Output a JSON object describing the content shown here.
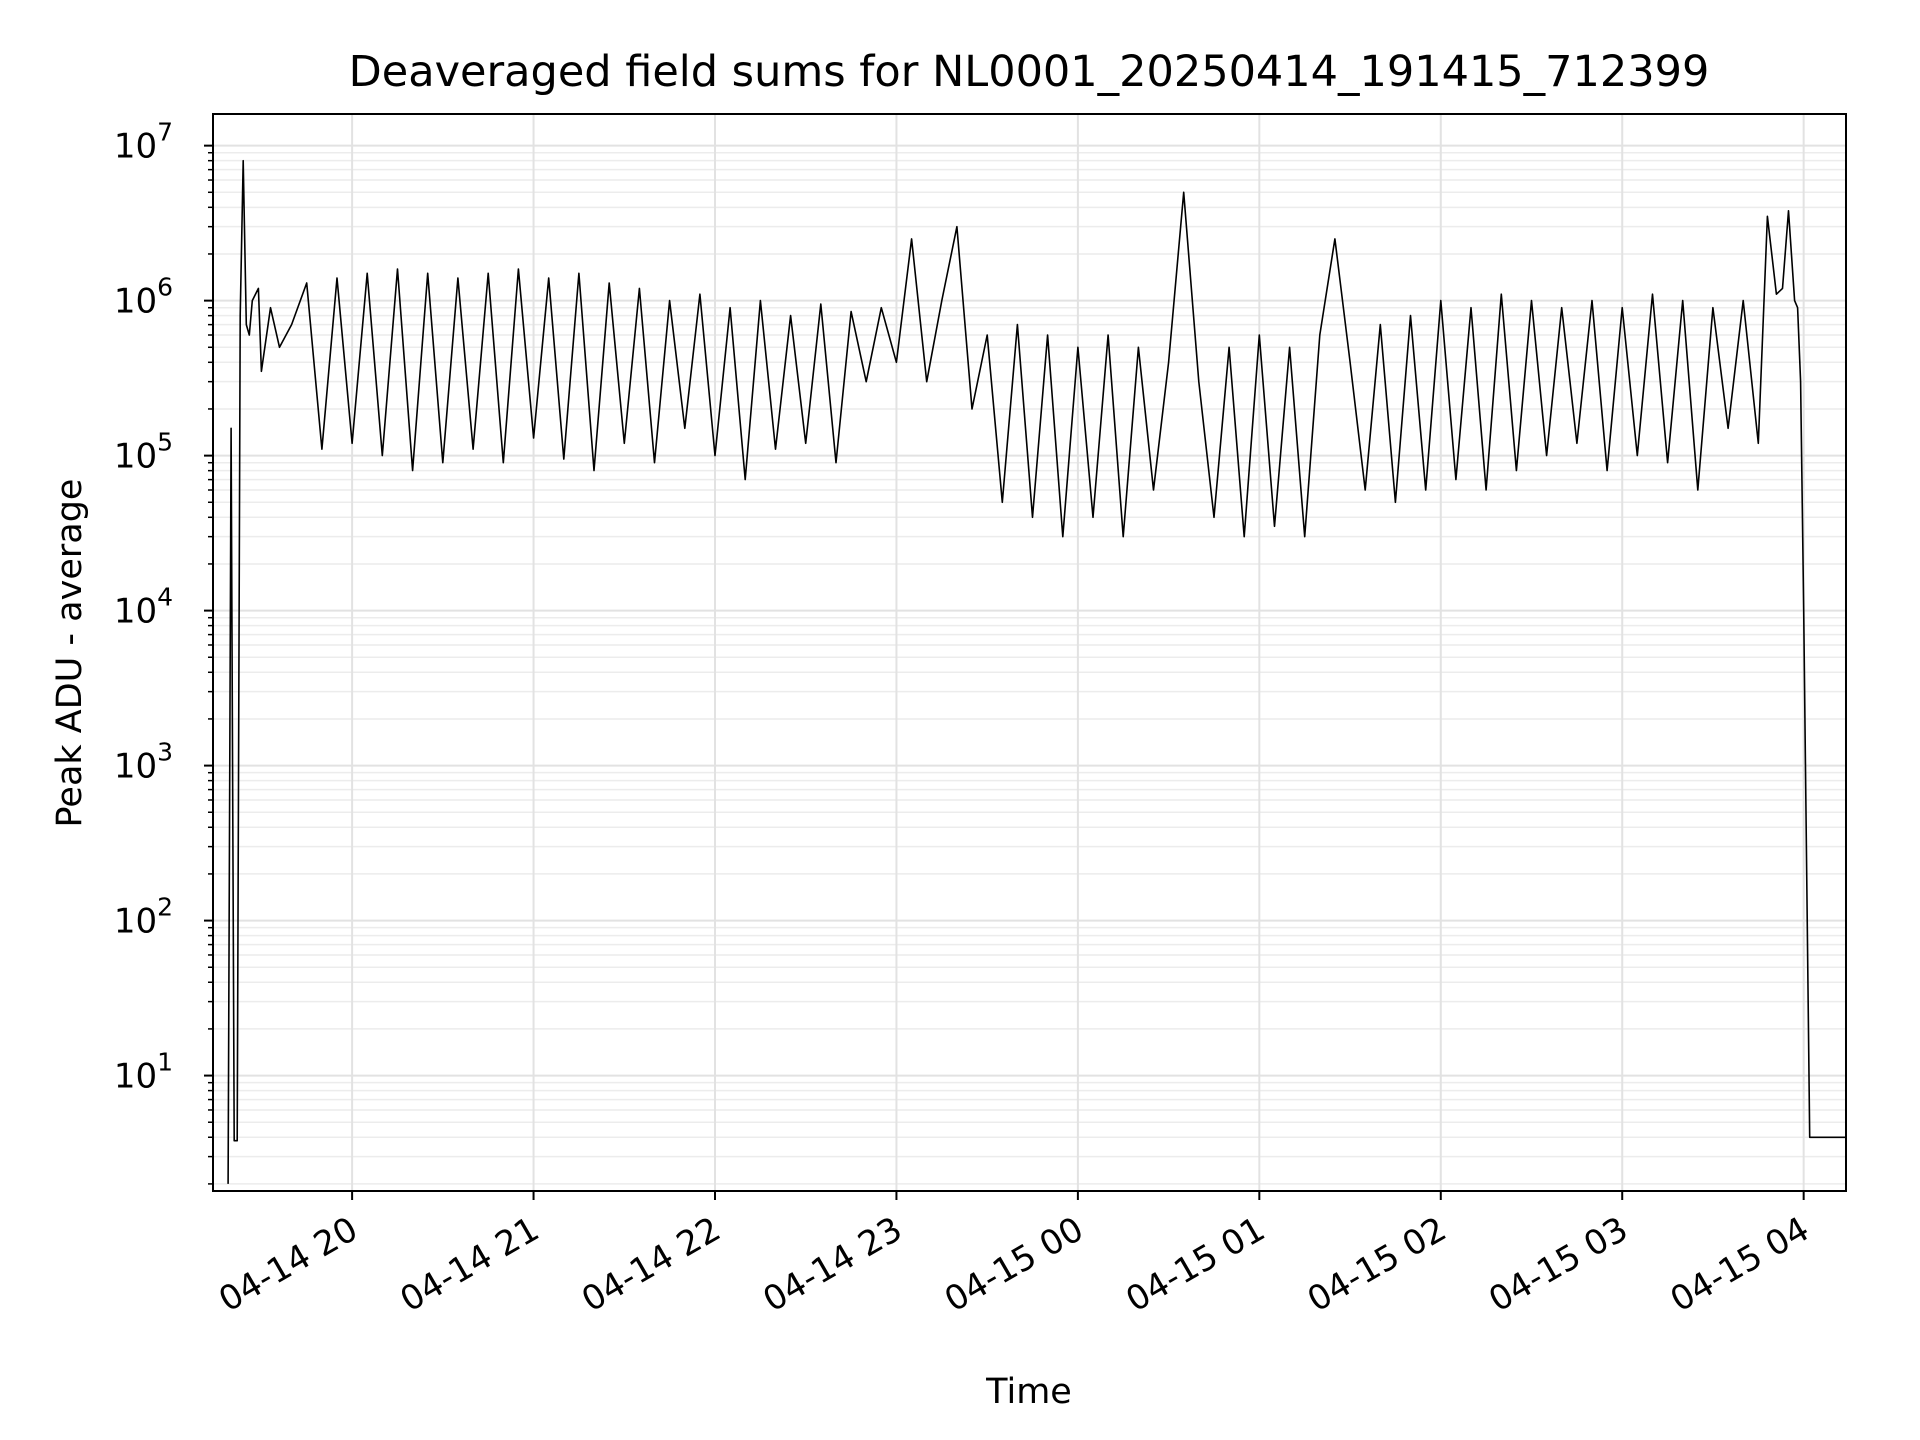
{
  "chart_data": {
    "type": "line",
    "title": "Deaveraged field sums for NL0001_20250414_191415_712399",
    "xlabel": "Time",
    "ylabel": "Peak ADU - average",
    "y_scale": "log",
    "ylim": [
      1.8,
      16000000
    ],
    "xlim": [
      "2025-04-14 19:14",
      "2025-04-15 04:14"
    ],
    "grid": "major and minor",
    "line_color": "#000000",
    "x_ticks": [
      {
        "label": "04-14 20",
        "value": "2025-04-14 20:00"
      },
      {
        "label": "04-14 21",
        "value": "2025-04-14 21:00"
      },
      {
        "label": "04-14 22",
        "value": "2025-04-14 22:00"
      },
      {
        "label": "04-14 23",
        "value": "2025-04-14 23:00"
      },
      {
        "label": "04-15 00",
        "value": "2025-04-15 00:00"
      },
      {
        "label": "04-15 01",
        "value": "2025-04-15 01:00"
      },
      {
        "label": "04-15 02",
        "value": "2025-04-15 02:00"
      },
      {
        "label": "04-15 03",
        "value": "2025-04-15 03:00"
      },
      {
        "label": "04-15 04",
        "value": "2025-04-15 04:00"
      }
    ],
    "y_ticks": [
      {
        "base": "10",
        "exp": "1",
        "value": 10
      },
      {
        "base": "10",
        "exp": "2",
        "value": 100
      },
      {
        "base": "10",
        "exp": "3",
        "value": 1000
      },
      {
        "base": "10",
        "exp": "4",
        "value": 10000
      },
      {
        "base": "10",
        "exp": "5",
        "value": 100000
      },
      {
        "base": "10",
        "exp": "6",
        "value": 1000000
      },
      {
        "base": "10",
        "exp": "7",
        "value": 10000000
      }
    ],
    "series": [
      {
        "x": [
          "2025-04-14 19:19",
          "2025-04-14 19:20",
          "2025-04-14 19:21",
          "2025-04-14 19:22",
          "2025-04-14 19:23",
          "2025-04-14 19:24",
          "2025-04-14 19:25",
          "2025-04-14 19:26",
          "2025-04-14 19:27",
          "2025-04-14 19:29",
          "2025-04-14 19:30",
          "2025-04-14 19:33",
          "2025-04-14 19:36",
          "2025-04-14 19:40",
          "2025-04-14 19:45",
          "2025-04-14 19:50",
          "2025-04-14 19:55",
          "2025-04-14 20:00",
          "2025-04-14 20:05",
          "2025-04-14 20:10",
          "2025-04-14 20:15",
          "2025-04-14 20:20",
          "2025-04-14 20:25",
          "2025-04-14 20:30",
          "2025-04-14 20:35",
          "2025-04-14 20:40",
          "2025-04-14 20:45",
          "2025-04-14 20:50",
          "2025-04-14 20:55",
          "2025-04-14 21:00",
          "2025-04-14 21:05",
          "2025-04-14 21:10",
          "2025-04-14 21:15",
          "2025-04-14 21:20",
          "2025-04-14 21:25",
          "2025-04-14 21:30",
          "2025-04-14 21:35",
          "2025-04-14 21:40",
          "2025-04-14 21:45",
          "2025-04-14 21:50",
          "2025-04-14 21:55",
          "2025-04-14 22:00",
          "2025-04-14 22:05",
          "2025-04-14 22:10",
          "2025-04-14 22:15",
          "2025-04-14 22:20",
          "2025-04-14 22:25",
          "2025-04-14 22:30",
          "2025-04-14 22:35",
          "2025-04-14 22:40",
          "2025-04-14 22:45",
          "2025-04-14 22:50",
          "2025-04-14 22:55",
          "2025-04-14 23:00",
          "2025-04-14 23:05",
          "2025-04-14 23:10",
          "2025-04-14 23:15",
          "2025-04-14 23:20",
          "2025-04-14 23:25",
          "2025-04-14 23:30",
          "2025-04-14 23:35",
          "2025-04-14 23:40",
          "2025-04-14 23:45",
          "2025-04-14 23:50",
          "2025-04-14 23:55",
          "2025-04-15 00:00",
          "2025-04-15 00:05",
          "2025-04-15 00:10",
          "2025-04-15 00:15",
          "2025-04-15 00:20",
          "2025-04-15 00:25",
          "2025-04-15 00:30",
          "2025-04-15 00:35",
          "2025-04-15 00:40",
          "2025-04-15 00:45",
          "2025-04-15 00:50",
          "2025-04-15 00:55",
          "2025-04-15 01:00",
          "2025-04-15 01:05",
          "2025-04-15 01:10",
          "2025-04-15 01:15",
          "2025-04-15 01:20",
          "2025-04-15 01:25",
          "2025-04-15 01:30",
          "2025-04-15 01:35",
          "2025-04-15 01:40",
          "2025-04-15 01:45",
          "2025-04-15 01:50",
          "2025-04-15 01:55",
          "2025-04-15 02:00",
          "2025-04-15 02:05",
          "2025-04-15 02:10",
          "2025-04-15 02:15",
          "2025-04-15 02:20",
          "2025-04-15 02:25",
          "2025-04-15 02:30",
          "2025-04-15 02:35",
          "2025-04-15 02:40",
          "2025-04-15 02:45",
          "2025-04-15 02:50",
          "2025-04-15 02:55",
          "2025-04-15 03:00",
          "2025-04-15 03:05",
          "2025-04-15 03:10",
          "2025-04-15 03:15",
          "2025-04-15 03:20",
          "2025-04-15 03:25",
          "2025-04-15 03:30",
          "2025-04-15 03:35",
          "2025-04-15 03:40",
          "2025-04-15 03:45",
          "2025-04-15 03:48",
          "2025-04-15 03:51",
          "2025-04-15 03:53",
          "2025-04-15 03:55",
          "2025-04-15 03:57",
          "2025-04-15 03:58",
          "2025-04-15 03:59",
          "2025-04-15 04:00",
          "2025-04-15 04:01",
          "2025-04-15 04:02",
          "2025-04-15 04:05",
          "2025-04-15 04:10",
          "2025-04-15 04:14"
        ],
        "y": [
          2,
          150000,
          3.8,
          3.8,
          800000,
          8000000,
          700000,
          600000,
          1000000,
          1200000,
          350000,
          900000,
          500000,
          700000,
          1300000,
          110000,
          1400000,
          120000,
          1500000,
          100000,
          1600000,
          80000,
          1500000,
          90000,
          1400000,
          110000,
          1500000,
          90000,
          1600000,
          130000,
          1400000,
          95000,
          1500000,
          80000,
          1300000,
          120000,
          1200000,
          90000,
          1000000,
          150000,
          1100000,
          100000,
          900000,
          70000,
          1000000,
          110000,
          800000,
          120000,
          950000,
          90000,
          850000,
          300000,
          900000,
          400000,
          2500000,
          300000,
          1000000,
          3000000,
          200000,
          600000,
          50000,
          700000,
          40000,
          600000,
          30000,
          500000,
          40000,
          600000,
          30000,
          500000,
          60000,
          400000,
          5000000,
          300000,
          40000,
          500000,
          30000,
          600000,
          35000,
          500000,
          30000,
          600000,
          2500000,
          400000,
          60000,
          700000,
          50000,
          800000,
          60000,
          1000000,
          70000,
          900000,
          60000,
          1100000,
          80000,
          1000000,
          100000,
          900000,
          120000,
          1000000,
          80000,
          900000,
          100000,
          1100000,
          90000,
          1000000,
          60000,
          900000,
          150000,
          1000000,
          120000,
          3500000,
          1100000,
          1200000,
          3800000,
          1000000,
          900000,
          300000,
          10000,
          200,
          4,
          4,
          4,
          4
        ]
      }
    ]
  }
}
